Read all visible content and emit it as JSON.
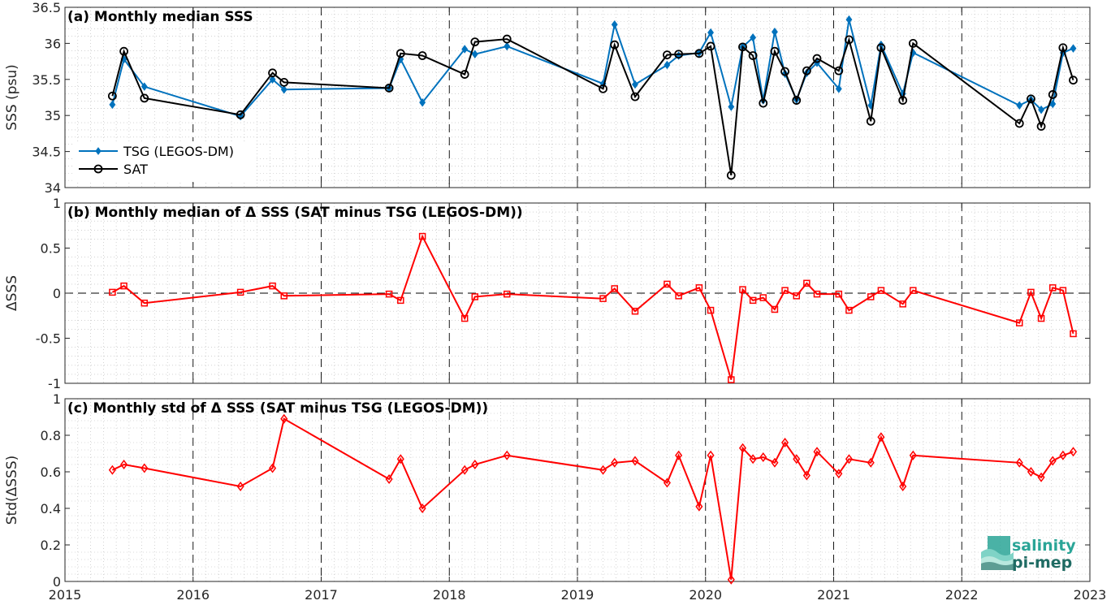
{
  "colors": {
    "tsg": "#0072BD",
    "sat": "#000000",
    "diff": "#FF0000",
    "logo_teal": "#2aa597",
    "logo_dark": "#1f6b63"
  },
  "x_ticks": [
    "2015",
    "2016",
    "2017",
    "2018",
    "2019",
    "2020",
    "2021",
    "2022",
    "2023"
  ],
  "logo": {
    "line1": "salinity",
    "line2": "pi-mep",
    "icon": "salinity-pimep-wave-logo"
  },
  "chart_data": [
    {
      "type": "line",
      "title": "(a) Monthly median SSS",
      "ylabel": "SSS (psu)",
      "xlim": [
        2015,
        2023
      ],
      "ylim": [
        34,
        36.5
      ],
      "y_ticks": [
        "34",
        "34.5",
        "35",
        "35.5",
        "36",
        "36.5"
      ],
      "grid": true,
      "legend_placement": "bottom-left",
      "series": [
        {
          "name": "TSG (LEGOS-DM)",
          "marker": "diamond",
          "points": [
            [
              2015.37,
              35.15
            ],
            [
              2015.46,
              35.78
            ],
            [
              2015.62,
              35.4
            ],
            [
              2016.37,
              34.99
            ],
            [
              2016.62,
              35.5
            ],
            [
              2016.71,
              35.36
            ],
            [
              2017.53,
              35.38
            ],
            [
              2017.62,
              35.78
            ],
            [
              2017.79,
              35.18
            ],
            [
              2018.12,
              35.92
            ],
            [
              2018.2,
              35.85
            ],
            [
              2018.45,
              35.96
            ],
            [
              2019.2,
              35.44
            ],
            [
              2019.29,
              36.26
            ],
            [
              2019.45,
              35.43
            ],
            [
              2019.7,
              35.7
            ],
            [
              2019.79,
              35.83
            ],
            [
              2019.95,
              35.87
            ],
            [
              2020.04,
              36.15
            ],
            [
              2020.2,
              35.12
            ],
            [
              2020.29,
              35.95
            ],
            [
              2020.37,
              36.08
            ],
            [
              2020.45,
              35.21
            ],
            [
              2020.54,
              36.16
            ],
            [
              2020.62,
              35.58
            ],
            [
              2020.71,
              35.22
            ],
            [
              2020.79,
              35.59
            ],
            [
              2020.87,
              35.73
            ],
            [
              2021.04,
              35.37
            ],
            [
              2021.12,
              36.33
            ],
            [
              2021.29,
              35.14
            ],
            [
              2021.37,
              35.98
            ],
            [
              2021.54,
              35.3
            ],
            [
              2021.62,
              35.87
            ],
            [
              2022.45,
              35.14
            ],
            [
              2022.54,
              35.22
            ],
            [
              2022.62,
              35.08
            ],
            [
              2022.71,
              35.16
            ],
            [
              2022.79,
              35.87
            ],
            [
              2022.87,
              35.93
            ]
          ]
        },
        {
          "name": "SAT",
          "marker": "circle",
          "points": [
            [
              2015.37,
              35.27
            ],
            [
              2015.46,
              35.89
            ],
            [
              2015.62,
              35.24
            ],
            [
              2016.37,
              35.01
            ],
            [
              2016.62,
              35.59
            ],
            [
              2016.71,
              35.46
            ],
            [
              2017.53,
              35.38
            ],
            [
              2017.62,
              35.86
            ],
            [
              2017.79,
              35.83
            ],
            [
              2018.12,
              35.57
            ],
            [
              2018.2,
              36.02
            ],
            [
              2018.45,
              36.06
            ],
            [
              2019.2,
              35.37
            ],
            [
              2019.29,
              35.98
            ],
            [
              2019.45,
              35.26
            ],
            [
              2019.7,
              35.84
            ],
            [
              2019.79,
              35.85
            ],
            [
              2019.95,
              35.86
            ],
            [
              2020.04,
              35.96
            ],
            [
              2020.2,
              34.17
            ],
            [
              2020.29,
              35.95
            ],
            [
              2020.37,
              35.83
            ],
            [
              2020.45,
              35.17
            ],
            [
              2020.54,
              35.89
            ],
            [
              2020.62,
              35.61
            ],
            [
              2020.71,
              35.21
            ],
            [
              2020.79,
              35.62
            ],
            [
              2020.87,
              35.79
            ],
            [
              2021.04,
              35.62
            ],
            [
              2021.12,
              36.05
            ],
            [
              2021.29,
              34.92
            ],
            [
              2021.37,
              35.94
            ],
            [
              2021.54,
              35.21
            ],
            [
              2021.62,
              36.0
            ],
            [
              2022.45,
              34.89
            ],
            [
              2022.54,
              35.23
            ],
            [
              2022.62,
              34.85
            ],
            [
              2022.71,
              35.29
            ],
            [
              2022.79,
              35.94
            ],
            [
              2022.87,
              35.49
            ]
          ]
        }
      ]
    },
    {
      "type": "line",
      "title": "(b) Monthly median of Δ SSS (SAT minus TSG (LEGOS-DM))",
      "ylabel": "ΔSSS",
      "xlim": [
        2015,
        2023
      ],
      "ylim": [
        -1,
        1
      ],
      "y_ticks": [
        "-1",
        "-0.5",
        "0",
        "0.5",
        "1"
      ],
      "grid": true,
      "zero_line": "dashed",
      "series": [
        {
          "marker": "square",
          "points": [
            [
              2015.37,
              0.01
            ],
            [
              2015.46,
              0.08
            ],
            [
              2015.62,
              -0.11
            ],
            [
              2016.37,
              0.01
            ],
            [
              2016.62,
              0.08
            ],
            [
              2016.71,
              -0.03
            ],
            [
              2017.53,
              -0.01
            ],
            [
              2017.62,
              -0.08
            ],
            [
              2017.79,
              0.63
            ],
            [
              2018.12,
              -0.28
            ],
            [
              2018.2,
              -0.04
            ],
            [
              2018.45,
              -0.01
            ],
            [
              2019.2,
              -0.06
            ],
            [
              2019.29,
              0.05
            ],
            [
              2019.45,
              -0.2
            ],
            [
              2019.7,
              0.1
            ],
            [
              2019.79,
              -0.03
            ],
            [
              2019.95,
              0.06
            ],
            [
              2020.04,
              -0.19
            ],
            [
              2020.2,
              -0.96
            ],
            [
              2020.29,
              0.04
            ],
            [
              2020.37,
              -0.08
            ],
            [
              2020.45,
              -0.05
            ],
            [
              2020.54,
              -0.18
            ],
            [
              2020.62,
              0.03
            ],
            [
              2020.71,
              -0.03
            ],
            [
              2020.79,
              0.11
            ],
            [
              2020.87,
              -0.01
            ],
            [
              2021.04,
              -0.01
            ],
            [
              2021.12,
              -0.19
            ],
            [
              2021.29,
              -0.04
            ],
            [
              2021.37,
              0.03
            ],
            [
              2021.54,
              -0.12
            ],
            [
              2021.62,
              0.03
            ],
            [
              2022.45,
              -0.33
            ],
            [
              2022.54,
              0.01
            ],
            [
              2022.62,
              -0.28
            ],
            [
              2022.71,
              0.06
            ],
            [
              2022.79,
              0.03
            ],
            [
              2022.87,
              -0.45
            ]
          ]
        }
      ]
    },
    {
      "type": "line",
      "title": "(c) Monthly std of Δ SSS (SAT minus TSG (LEGOS-DM))",
      "ylabel": "Std(ΔSSS)",
      "xlim": [
        2015,
        2023
      ],
      "ylim": [
        0,
        1
      ],
      "y_ticks": [
        "0",
        "0.2",
        "0.4",
        "0.6",
        "0.8",
        "1"
      ],
      "grid": true,
      "series": [
        {
          "marker": "diamond",
          "points": [
            [
              2015.37,
              0.61
            ],
            [
              2015.46,
              0.64
            ],
            [
              2015.62,
              0.62
            ],
            [
              2016.37,
              0.52
            ],
            [
              2016.62,
              0.62
            ],
            [
              2016.71,
              0.89
            ],
            [
              2017.53,
              0.56
            ],
            [
              2017.62,
              0.67
            ],
            [
              2017.79,
              0.4
            ],
            [
              2018.12,
              0.61
            ],
            [
              2018.2,
              0.64
            ],
            [
              2018.45,
              0.69
            ],
            [
              2019.2,
              0.61
            ],
            [
              2019.29,
              0.65
            ],
            [
              2019.45,
              0.66
            ],
            [
              2019.7,
              0.54
            ],
            [
              2019.79,
              0.69
            ],
            [
              2019.95,
              0.41
            ],
            [
              2020.04,
              0.69
            ],
            [
              2020.2,
              0.01
            ],
            [
              2020.29,
              0.73
            ],
            [
              2020.37,
              0.67
            ],
            [
              2020.45,
              0.68
            ],
            [
              2020.54,
              0.65
            ],
            [
              2020.62,
              0.76
            ],
            [
              2020.71,
              0.67
            ],
            [
              2020.79,
              0.58
            ],
            [
              2020.87,
              0.71
            ],
            [
              2021.04,
              0.59
            ],
            [
              2021.12,
              0.67
            ],
            [
              2021.29,
              0.65
            ],
            [
              2021.37,
              0.79
            ],
            [
              2021.54,
              0.52
            ],
            [
              2021.62,
              0.69
            ],
            [
              2022.45,
              0.65
            ],
            [
              2022.54,
              0.6
            ],
            [
              2022.62,
              0.57
            ],
            [
              2022.71,
              0.66
            ],
            [
              2022.79,
              0.69
            ],
            [
              2022.87,
              0.71
            ]
          ]
        }
      ]
    }
  ]
}
